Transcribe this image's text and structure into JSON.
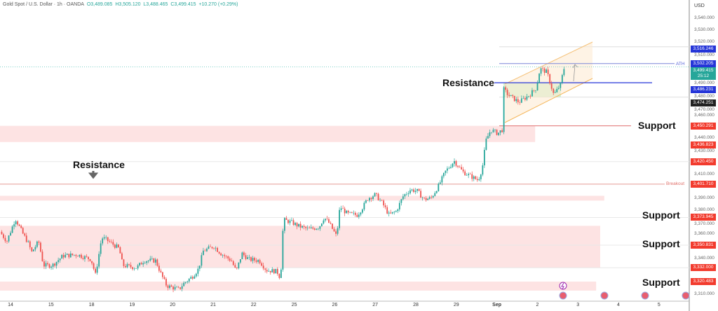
{
  "header": {
    "symbol": "Gold Spot / U.S. Dollar · 1h · OANDA",
    "open": "O3,489.085",
    "high": "H3,505.120",
    "low": "L3,488.465",
    "close": "C3,499.415",
    "change": "+10.270 (+0.29%)"
  },
  "axis": {
    "currency": "USD",
    "ticks": [
      "3,540.000",
      "3,530.000",
      "3,520.000",
      "3,510.000",
      "3,490.000",
      "3,480.000",
      "3,470.000",
      "3,460.000",
      "3,440.000",
      "3,430.000",
      "3,410.000",
      "3,390.000",
      "3,380.000",
      "3,370.000",
      "3,360.000",
      "3,340.000",
      "3,310.000"
    ],
    "tick_values": [
      3540,
      3530,
      3520,
      3510,
      3490,
      3480,
      3470,
      3460,
      3440,
      3430,
      3410,
      3390,
      3380,
      3370,
      3360,
      3340,
      3310
    ],
    "price_labels": [
      {
        "text": "3,516.246",
        "value": 3516.246,
        "color": "#2535d8"
      },
      {
        "text": "3,502.205",
        "value": 3502.205,
        "color": "#2535d8"
      },
      {
        "text": "3,499.415",
        "value": 3499.415,
        "color": "#26a69a",
        "sub": "25:12"
      },
      {
        "text": "3,486.231",
        "value": 3486.231,
        "color": "#2535d8"
      },
      {
        "text": "3,474.251",
        "value": 3474.251,
        "color": "#222222"
      },
      {
        "text": "3,450.291",
        "value": 3450.291,
        "color": "#f23b2e"
      },
      {
        "text": "3,436.823",
        "value": 3436.823,
        "color": "#f23b2e"
      },
      {
        "text": "3,420.450",
        "value": 3420.45,
        "color": "#f23b2e"
      },
      {
        "text": "3,401.710",
        "value": 3401.71,
        "color": "#f23b2e"
      },
      {
        "text": "3,373.945",
        "value": 3373.945,
        "color": "#f23b2e"
      },
      {
        "text": "3,350.831",
        "value": 3350.831,
        "color": "#f23b2e"
      },
      {
        "text": "3,332.000",
        "value": 3332.0,
        "color": "#f23b2e"
      },
      {
        "text": "3,320.483",
        "value": 3320.483,
        "color": "#f23b2e"
      }
    ]
  },
  "annotations": {
    "resistance_left": "Resistance",
    "resistance_right": "Resistance",
    "support_1": "Support",
    "support_2": "Support",
    "support_3": "Support",
    "support_4": "Support",
    "ath": "ATH",
    "breakout": "Breakout"
  },
  "colors": {
    "up": "#26a69a",
    "down": "#ef5350",
    "zone": "#fde3e3",
    "blue_line": "#2535d8",
    "red_line": "#f23b2e"
  },
  "chart_data": {
    "type": "candlestick",
    "title": "Gold Spot / U.S. Dollar · 1h · OANDA",
    "x_tick_labels": [
      "14",
      "15",
      "18",
      "19",
      "20",
      "21",
      "22",
      "25",
      "26",
      "27",
      "28",
      "29",
      "Sep",
      "2",
      "3",
      "4",
      "5"
    ],
    "ylim": [
      3305,
      3545
    ],
    "close_path_note_units": "[trading-day index from Aug 14, price]",
    "close_path": [
      [
        -0.26,
        3362
      ],
      [
        -0.09,
        3354
      ],
      [
        0.12,
        3373
      ],
      [
        0.31,
        3360
      ],
      [
        0.43,
        3353
      ],
      [
        0.52,
        3345
      ],
      [
        0.69,
        3354
      ],
      [
        0.81,
        3334
      ],
      [
        1.03,
        3334
      ],
      [
        1.29,
        3342
      ],
      [
        1.64,
        3343
      ],
      [
        1.98,
        3339
      ],
      [
        2.09,
        3326
      ],
      [
        2.24,
        3357
      ],
      [
        2.33,
        3356
      ],
      [
        2.67,
        3348
      ],
      [
        2.76,
        3334
      ],
      [
        3.1,
        3332
      ],
      [
        3.28,
        3338
      ],
      [
        3.57,
        3338
      ],
      [
        3.71,
        3326
      ],
      [
        3.84,
        3317
      ],
      [
        4.14,
        3314
      ],
      [
        4.26,
        3319
      ],
      [
        4.48,
        3325
      ],
      [
        4.62,
        3331
      ],
      [
        4.74,
        3346
      ],
      [
        5.0,
        3350
      ],
      [
        5.17,
        3344
      ],
      [
        5.43,
        3338
      ],
      [
        5.55,
        3329
      ],
      [
        5.69,
        3344
      ],
      [
        5.86,
        3339
      ],
      [
        6.12,
        3338
      ],
      [
        6.29,
        3330
      ],
      [
        6.55,
        3329
      ],
      [
        6.64,
        3323
      ],
      [
        6.71,
        3372
      ],
      [
        6.9,
        3370
      ],
      [
        7.07,
        3367
      ],
      [
        7.33,
        3364
      ],
      [
        7.59,
        3366
      ],
      [
        7.71,
        3374
      ],
      [
        7.84,
        3369
      ],
      [
        8.02,
        3358
      ],
      [
        8.1,
        3383
      ],
      [
        8.28,
        3377
      ],
      [
        8.53,
        3376
      ],
      [
        8.67,
        3383
      ],
      [
        8.79,
        3390
      ],
      [
        8.97,
        3393
      ],
      [
        9.14,
        3386
      ],
      [
        9.31,
        3376
      ],
      [
        9.48,
        3379
      ],
      [
        9.66,
        3392
      ],
      [
        9.83,
        3397
      ],
      [
        10.0,
        3396
      ],
      [
        10.17,
        3389
      ],
      [
        10.34,
        3390
      ],
      [
        10.52,
        3400
      ],
      [
        10.69,
        3412
      ],
      [
        10.91,
        3421
      ],
      [
        11.12,
        3412
      ],
      [
        11.33,
        3408
      ],
      [
        11.5,
        3405
      ],
      [
        11.6,
        3415
      ],
      [
        11.69,
        3438
      ],
      [
        11.81,
        3447
      ],
      [
        11.98,
        3444
      ],
      [
        12.09,
        3447
      ],
      [
        12.12,
        3481
      ],
      [
        12.24,
        3476
      ],
      [
        12.5,
        3470
      ],
      [
        12.76,
        3476
      ],
      [
        12.93,
        3482
      ],
      [
        13.02,
        3498
      ],
      [
        13.19,
        3495
      ],
      [
        13.28,
        3485
      ],
      [
        13.36,
        3476
      ],
      [
        13.53,
        3485
      ],
      [
        13.59,
        3496
      ],
      [
        13.62,
        3499.4
      ]
    ],
    "zones": [
      {
        "name": "support-zone-upper",
        "from": 3436.8,
        "to": 3450.3,
        "t_end": 12.9
      },
      {
        "name": "minor-zone",
        "from": 3388,
        "to": 3392,
        "t_end": 14.6
      },
      {
        "name": "range-zone",
        "from": 3332,
        "to": 3367,
        "t_end": 14.5
      },
      {
        "name": "bottom-zone",
        "from": 3313,
        "to": 3320.5,
        "t_end": 14.4
      }
    ],
    "levels": {
      "ath": 3502.205,
      "resistance": 3486.231,
      "support": 3450.291,
      "breakout": 3401.71,
      "current": 3499.415
    }
  }
}
